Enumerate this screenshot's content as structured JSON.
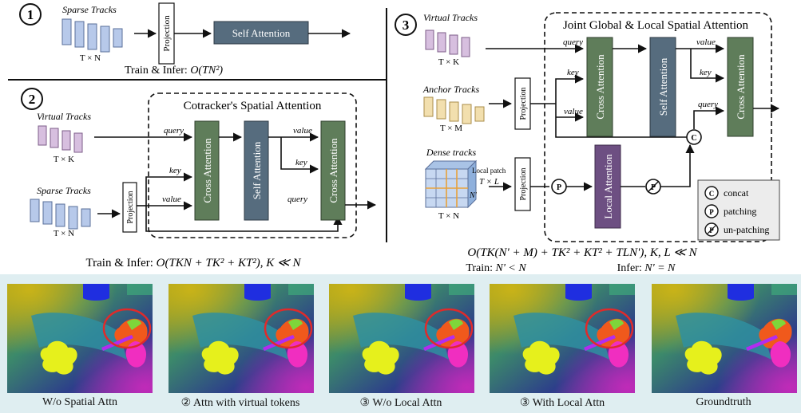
{
  "panel1": {
    "num": "1",
    "tracks_label": "Sparse Tracks",
    "tracks_dim": "T × N",
    "projection": "Projection",
    "self_attention": "Self Attention",
    "complexity_prefix": "Train & Infer: ",
    "complexity_formula": "O(TN²)"
  },
  "panel2": {
    "num": "2",
    "title": "Cotracker's Spatial Attention",
    "virtual_label": "Virtual Tracks",
    "virtual_dim": "T × K",
    "sparse_label": "Sparse Tracks",
    "sparse_dim": "T × N",
    "projection": "Projection",
    "cross_attention_1": "Cross Attention",
    "self_attention": "Self Attention",
    "cross_attention_2": "Cross Attention",
    "query": "query",
    "key": "key",
    "value": "value",
    "value_clipped": "value",
    "value2_clipped": "value",
    "key2": "key",
    "query2": "query",
    "complexity_prefix": "Train & Infer: ",
    "complexity_formula": "O(TKN + TK² + KT²), K ≪ N"
  },
  "panel3": {
    "num": "3",
    "title": "Joint Global & Local Spatial Attention",
    "virtual_label": "Virtual Tracks",
    "virtual_dim": "T × K",
    "anchor_label": "Anchor Tracks",
    "anchor_dim": "T × M",
    "dense_label": "Dense tracks",
    "dense_dim": "T × N",
    "local_patch": "Local patch",
    "patch_dim": "T × L",
    "n_prime": "N'",
    "projection_a": "Projection",
    "projection_b": "Projection",
    "cross_attention_1": "Cross Attention",
    "self_attention": "Self Attention",
    "cross_attention_2": "Cross Attention",
    "local_attention": "Local Attention",
    "query": "query",
    "key": "key",
    "value": "value",
    "value2": "value",
    "key2": "key",
    "query2": "query",
    "c_symbol": "C",
    "p_symbol": "P",
    "u_symbol": "P",
    "legend": [
      {
        "symbol": "C",
        "label": "concat"
      },
      {
        "symbol": "P",
        "label": "patching"
      },
      {
        "symbol": "P",
        "label": "un-patching"
      }
    ],
    "complexity_formula": "O(TK(N' + M) + TK² + KT² + TLN'), K, L ≪ N",
    "train_prefix": "Train: ",
    "train_formula": "N' < N",
    "infer_prefix": "Infer: ",
    "infer_formula": "N' = N"
  },
  "results": [
    {
      "caption": "W/o Spatial Attn",
      "circle": true
    },
    {
      "caption": "② Attn with virtual tokens",
      "circle": true
    },
    {
      "caption": "③ W/o Local Attn",
      "circle": true
    },
    {
      "caption": "③ With Local Attn",
      "circle": true
    },
    {
      "caption": "Groundtruth",
      "circle": false
    }
  ],
  "colors": {
    "cross_attention": "#5f7d5a",
    "self_attention": "#566c7e",
    "local_attention": "#6d4f82",
    "sparse_tracks": "#b7c9ea",
    "virtual_tracks": "#d7bfdf",
    "anchor_tracks": "#f2dfae",
    "result_background": "#dfeef1",
    "highlight_circle": "#e02a2a"
  }
}
